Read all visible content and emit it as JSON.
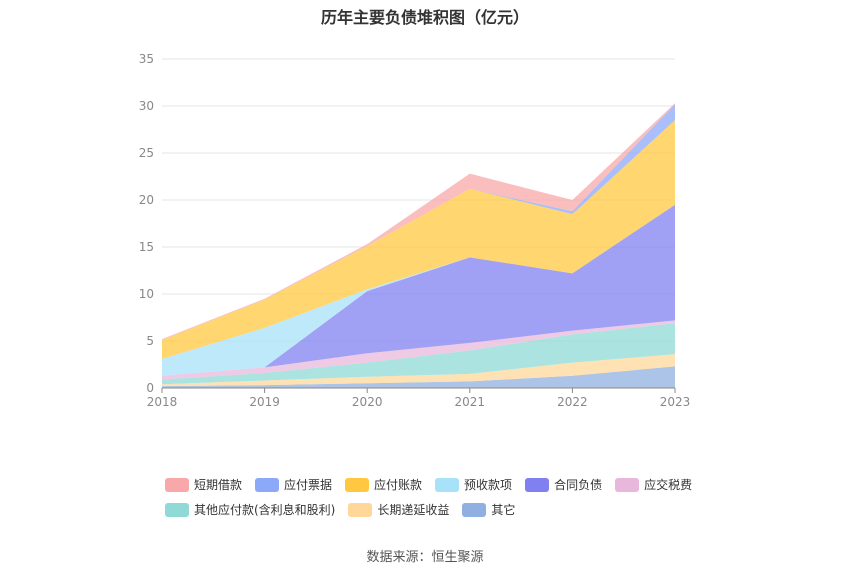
{
  "chart_data": {
    "type": "area",
    "stacked": true,
    "title": "历年主要负债堆积图（亿元）",
    "x": [
      "2018",
      "2019",
      "2020",
      "2021",
      "2022",
      "2023"
    ],
    "ylim": [
      0,
      35
    ],
    "yticks": [
      0,
      5,
      10,
      15,
      20,
      25,
      30,
      35
    ],
    "grid": true,
    "legend_position": "bottom",
    "series": [
      {
        "name": "其它",
        "color": "#8fb0e0",
        "values": [
          0.2,
          0.3,
          0.5,
          0.7,
          1.3,
          2.3
        ]
      },
      {
        "name": "长期递延收益",
        "color": "#ffd899",
        "values": [
          0.2,
          0.5,
          0.7,
          0.8,
          1.4,
          1.3
        ]
      },
      {
        "name": "其他应付款(含利息和股利)",
        "color": "#8fd9d6",
        "values": [
          0.5,
          0.8,
          1.5,
          2.5,
          3.0,
          3.3
        ]
      },
      {
        "name": "应交税费",
        "color": "#e8b8dc",
        "values": [
          0.4,
          0.6,
          1.0,
          0.8,
          0.4,
          0.3
        ]
      },
      {
        "name": "合同负债",
        "color": "#8080f0",
        "values": [
          0.0,
          0.0,
          6.6,
          9.1,
          6.1,
          12.3
        ]
      },
      {
        "name": "预收款项",
        "color": "#a8e2f8",
        "values": [
          1.8,
          4.2,
          0.2,
          0.0,
          0.0,
          0.0
        ]
      },
      {
        "name": "应付账款",
        "color": "#ffc840",
        "values": [
          2.0,
          3.0,
          4.6,
          7.3,
          6.3,
          9.0
        ]
      },
      {
        "name": "应付票据",
        "color": "#8ca8f8",
        "values": [
          0.0,
          0.0,
          0.0,
          0.0,
          0.3,
          1.7
        ]
      },
      {
        "name": "短期借款",
        "color": "#f8a8a8",
        "values": [
          0.1,
          0.1,
          0.2,
          1.6,
          1.2,
          0.1
        ]
      }
    ],
    "legend_order": [
      "短期借款",
      "应付票据",
      "应付账款",
      "预收款项",
      "合同负债",
      "应交税费",
      "其他应付款(含利息和股利)",
      "长期递延收益",
      "其它"
    ],
    "source": "数据来源：恒生聚源"
  }
}
